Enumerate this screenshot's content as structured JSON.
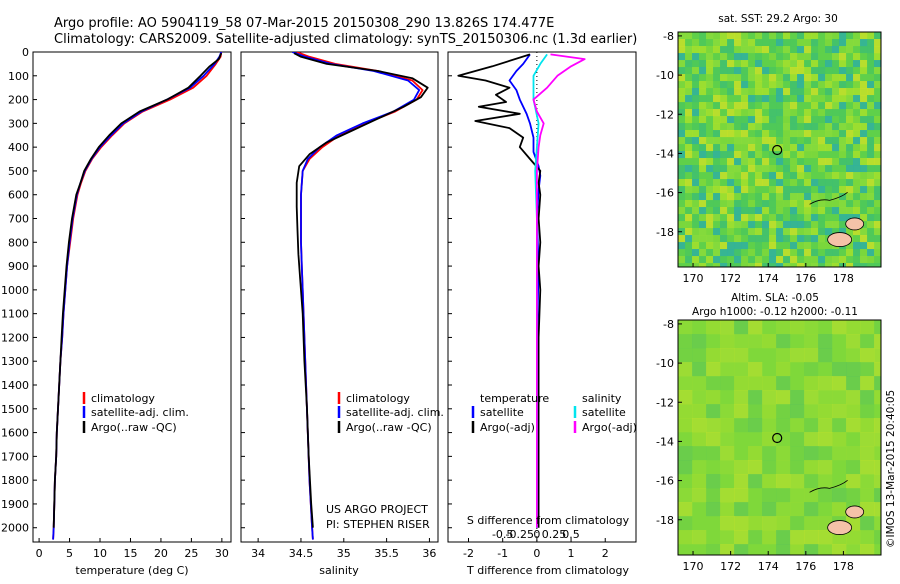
{
  "header": {
    "line1": "Argo profile: AO 5904119_58 07-Mar-2015 20150308_290 13.826S 174.477E",
    "line2": "Climatology: CARS2009. Satellite-adjusted climatology: synTS_20150306.nc (1.3d earlier)"
  },
  "colors": {
    "climatology": "#ff0000",
    "satellite": "#0000ff",
    "argo": "#000000",
    "sal_satellite": "#00e5ee",
    "sal_argo": "#ff00ff"
  },
  "depth_axis": {
    "ylim": [
      2060,
      0
    ],
    "ticks": [
      0,
      100,
      200,
      300,
      400,
      500,
      600,
      700,
      800,
      900,
      1000,
      1100,
      1200,
      1300,
      1400,
      1500,
      1600,
      1700,
      1800,
      1900,
      2000
    ]
  },
  "chart_data": [
    {
      "id": "temperature",
      "type": "line",
      "xlabel": "temperature (deg C)",
      "xlim": [
        -1,
        31.5
      ],
      "xticks": [
        0,
        5,
        10,
        15,
        20,
        25,
        30
      ],
      "legend": {
        "climatology": "climatology",
        "satellite": "satellite-adj. clim.",
        "argo": "Argo(..raw -QC)"
      },
      "series": [
        {
          "name": "climatology",
          "points": [
            [
              29.9,
              0
            ],
            [
              29.8,
              20
            ],
            [
              29.0,
              50
            ],
            [
              27.5,
              100
            ],
            [
              25.3,
              150
            ],
            [
              21.5,
              200
            ],
            [
              17.0,
              250
            ],
            [
              14.0,
              300
            ],
            [
              12.0,
              350
            ],
            [
              10.2,
              400
            ],
            [
              8.7,
              450
            ],
            [
              7.6,
              500
            ],
            [
              6.9,
              550
            ],
            [
              6.3,
              600
            ],
            [
              5.6,
              700
            ],
            [
              5.1,
              800
            ],
            [
              4.6,
              900
            ],
            [
              4.3,
              1000
            ],
            [
              4.0,
              1100
            ],
            [
              3.8,
              1200
            ],
            [
              3.5,
              1300
            ],
            [
              3.3,
              1400
            ],
            [
              3.1,
              1500
            ],
            [
              2.9,
              1600
            ],
            [
              2.8,
              1700
            ],
            [
              2.6,
              1800
            ],
            [
              2.5,
              1900
            ],
            [
              2.4,
              2000
            ],
            [
              2.3,
              2050
            ]
          ]
        },
        {
          "name": "satellite",
          "points": [
            [
              29.9,
              0
            ],
            [
              29.6,
              20
            ],
            [
              28.8,
              50
            ],
            [
              27.0,
              100
            ],
            [
              24.8,
              150
            ],
            [
              21.0,
              200
            ],
            [
              16.8,
              250
            ],
            [
              13.8,
              300
            ],
            [
              11.8,
              350
            ],
            [
              10.0,
              400
            ],
            [
              8.6,
              450
            ],
            [
              7.5,
              500
            ],
            [
              6.8,
              550
            ],
            [
              6.2,
              600
            ],
            [
              5.5,
              700
            ],
            [
              5.0,
              800
            ],
            [
              4.6,
              900
            ],
            [
              4.3,
              1000
            ],
            [
              4.0,
              1100
            ],
            [
              3.8,
              1200
            ],
            [
              3.5,
              1300
            ],
            [
              3.3,
              1400
            ],
            [
              3.1,
              1500
            ],
            [
              2.9,
              1600
            ],
            [
              2.8,
              1700
            ],
            [
              2.6,
              1800
            ],
            [
              2.5,
              1900
            ],
            [
              2.4,
              2000
            ],
            [
              2.3,
              2050
            ]
          ]
        },
        {
          "name": "argo",
          "points": [
            [
              29.9,
              5
            ],
            [
              29.5,
              30
            ],
            [
              28.0,
              60
            ],
            [
              26.5,
              100
            ],
            [
              24.5,
              150
            ],
            [
              21.0,
              200
            ],
            [
              16.5,
              250
            ],
            [
              13.5,
              300
            ],
            [
              11.5,
              350
            ],
            [
              9.8,
              400
            ],
            [
              8.5,
              450
            ],
            [
              7.4,
              500
            ],
            [
              6.8,
              550
            ],
            [
              6.1,
              600
            ],
            [
              5.4,
              700
            ],
            [
              4.9,
              800
            ],
            [
              4.5,
              900
            ],
            [
              4.2,
              1000
            ],
            [
              3.9,
              1100
            ],
            [
              3.7,
              1200
            ],
            [
              3.5,
              1300
            ],
            [
              3.3,
              1400
            ],
            [
              3.1,
              1500
            ],
            [
              2.9,
              1600
            ],
            [
              2.8,
              1700
            ],
            [
              2.6,
              1800
            ],
            [
              2.5,
              1900
            ],
            [
              2.4,
              2000
            ]
          ]
        }
      ]
    },
    {
      "id": "salinity",
      "type": "line",
      "xlabel": "salinity",
      "xlim": [
        33.8,
        36.1
      ],
      "xticks": [
        34,
        34.5,
        35,
        35.5,
        36
      ],
      "legend": {
        "climatology": "climatology",
        "satellite": "satellite-adj. clim.",
        "argo": "Argo(..raw -QC)"
      },
      "series": [
        {
          "name": "climatology",
          "points": [
            [
              34.45,
              0
            ],
            [
              34.6,
              20
            ],
            [
              34.9,
              50
            ],
            [
              35.4,
              80
            ],
            [
              35.8,
              120
            ],
            [
              35.92,
              160
            ],
            [
              35.85,
              200
            ],
            [
              35.6,
              250
            ],
            [
              35.25,
              300
            ],
            [
              34.95,
              350
            ],
            [
              34.75,
              400
            ],
            [
              34.6,
              450
            ],
            [
              34.52,
              500
            ],
            [
              34.5,
              600
            ],
            [
              34.5,
              700
            ],
            [
              34.5,
              800
            ],
            [
              34.51,
              900
            ],
            [
              34.52,
              1000
            ],
            [
              34.54,
              1200
            ],
            [
              34.56,
              1400
            ],
            [
              34.58,
              1600
            ],
            [
              34.6,
              1800
            ],
            [
              34.63,
              2000
            ],
            [
              34.64,
              2050
            ]
          ]
        },
        {
          "name": "satellite",
          "points": [
            [
              34.4,
              0
            ],
            [
              34.55,
              20
            ],
            [
              34.85,
              50
            ],
            [
              35.35,
              80
            ],
            [
              35.75,
              120
            ],
            [
              35.88,
              160
            ],
            [
              35.82,
              200
            ],
            [
              35.58,
              250
            ],
            [
              35.22,
              300
            ],
            [
              34.92,
              350
            ],
            [
              34.72,
              400
            ],
            [
              34.58,
              450
            ],
            [
              34.52,
              500
            ],
            [
              34.5,
              600
            ],
            [
              34.5,
              700
            ],
            [
              34.5,
              800
            ],
            [
              34.51,
              900
            ],
            [
              34.52,
              1000
            ],
            [
              34.54,
              1200
            ],
            [
              34.56,
              1400
            ],
            [
              34.58,
              1600
            ],
            [
              34.6,
              1800
            ],
            [
              34.63,
              2000
            ],
            [
              34.64,
              2050
            ]
          ]
        },
        {
          "name": "argo",
          "points": [
            [
              34.42,
              5
            ],
            [
              34.5,
              20
            ],
            [
              34.8,
              50
            ],
            [
              35.4,
              80
            ],
            [
              35.8,
              110
            ],
            [
              35.98,
              150
            ],
            [
              35.9,
              190
            ],
            [
              35.7,
              230
            ],
            [
              35.4,
              280
            ],
            [
              35.1,
              330
            ],
            [
              34.8,
              380
            ],
            [
              34.6,
              430
            ],
            [
              34.48,
              480
            ],
            [
              34.45,
              550
            ],
            [
              34.45,
              650
            ],
            [
              34.46,
              750
            ],
            [
              34.47,
              850
            ],
            [
              34.49,
              950
            ],
            [
              34.52,
              1100
            ],
            [
              34.54,
              1300
            ],
            [
              34.57,
              1500
            ],
            [
              34.59,
              1700
            ],
            [
              34.62,
              1900
            ],
            [
              34.64,
              2000
            ]
          ]
        }
      ]
    },
    {
      "id": "difference",
      "type": "line",
      "xlabel": "T difference from climatology",
      "xlim": [
        -2.6,
        2.9
      ],
      "xticks": [
        -2,
        -1,
        0,
        1,
        2
      ],
      "top_axis_label": "S difference from climatology",
      "top_ticks": [
        "-0.5",
        "-0.25",
        "0",
        "0.25",
        "0.5"
      ],
      "legend": {
        "temperature": "temperature",
        "salinity": "salinity",
        "t_satellite": "satellite",
        "t_argo": "Argo(-adj)",
        "s_satellite": "satellite",
        "s_argo": "Argo(-adj)"
      },
      "series": [
        {
          "name": "temperature satellite",
          "points": [
            [
              -0.2,
              10
            ],
            [
              -0.4,
              50
            ],
            [
              -0.6,
              80
            ],
            [
              -0.8,
              120
            ],
            [
              -0.6,
              160
            ],
            [
              -0.5,
              200
            ],
            [
              -0.3,
              260
            ],
            [
              -0.2,
              300
            ],
            [
              -0.1,
              360
            ],
            [
              -0.1,
              420
            ],
            [
              0.05,
              480
            ],
            [
              0.1,
              520
            ],
            [
              0.05,
              580
            ],
            [
              0.0,
              700
            ],
            [
              0.05,
              900
            ],
            [
              0.02,
              1100
            ],
            [
              0.0,
              1300
            ],
            [
              0.0,
              1500
            ],
            [
              0.0,
              1700
            ],
            [
              0.0,
              1900
            ],
            [
              0.0,
              2000
            ]
          ]
        },
        {
          "name": "temperature Argo",
          "points": [
            [
              -0.2,
              10
            ],
            [
              -1.3,
              60
            ],
            [
              -2.3,
              100
            ],
            [
              -1.5,
              120
            ],
            [
              -0.8,
              150
            ],
            [
              -1.2,
              180
            ],
            [
              -0.9,
              210
            ],
            [
              -1.7,
              230
            ],
            [
              -0.5,
              260
            ],
            [
              -1.8,
              290
            ],
            [
              -0.8,
              320
            ],
            [
              -0.4,
              360
            ],
            [
              -0.5,
              400
            ],
            [
              -0.2,
              450
            ],
            [
              0.1,
              500
            ],
            [
              0.05,
              550
            ],
            [
              0.1,
              600
            ],
            [
              0.05,
              700
            ],
            [
              0.1,
              800
            ],
            [
              0.05,
              900
            ],
            [
              0.1,
              1000
            ],
            [
              0.05,
              1200
            ],
            [
              0.05,
              1400
            ],
            [
              0.05,
              1600
            ],
            [
              0.05,
              1800
            ],
            [
              0.05,
              2000
            ]
          ]
        },
        {
          "name": "salinity satellite",
          "points": [
            [
              0.3,
              10
            ],
            [
              0.1,
              50
            ],
            [
              -0.1,
              100
            ],
            [
              -0.1,
              200
            ],
            [
              0.05,
              300
            ],
            [
              0.0,
              400
            ],
            [
              -0.05,
              500
            ],
            [
              0.0,
              700
            ],
            [
              0.0,
              900
            ],
            [
              0.0,
              1200
            ],
            [
              0.0,
              1500
            ],
            [
              0.0,
              1800
            ],
            [
              0.0,
              2000
            ]
          ]
        },
        {
          "name": "salinity Argo",
          "points": [
            [
              0.4,
              10
            ],
            [
              1.4,
              30
            ],
            [
              1.0,
              60
            ],
            [
              0.6,
              100
            ],
            [
              0.3,
              150
            ],
            [
              -0.1,
              200
            ],
            [
              0.0,
              250
            ],
            [
              0.2,
              300
            ],
            [
              0.1,
              350
            ],
            [
              0.05,
              400
            ],
            [
              0.0,
              500
            ],
            [
              0.0,
              700
            ],
            [
              0.0,
              900
            ],
            [
              0.0,
              1200
            ],
            [
              0.0,
              1500
            ],
            [
              0.0,
              1800
            ],
            [
              0.0,
              2000
            ]
          ]
        }
      ]
    },
    {
      "id": "sst_map",
      "type": "heatmap",
      "title": "sat. SST: 29.2 Argo: 30",
      "xticks": [
        170,
        172,
        174,
        176,
        178
      ],
      "yticks": [
        -8,
        -10,
        -12,
        -14,
        -16,
        -18
      ],
      "xlim": [
        169.2,
        180
      ],
      "ylim": [
        -19.8,
        -7.8
      ],
      "marker": [
        174.477,
        -13.826
      ]
    },
    {
      "id": "sla_map",
      "type": "heatmap",
      "title_line1": "Altim. SLA: -0.05",
      "title_line2": "Argo h1000: -0.12 h2000: -0.11",
      "xticks": [
        170,
        172,
        174,
        176,
        178
      ],
      "yticks": [
        -8,
        -10,
        -12,
        -14,
        -16,
        -18
      ],
      "xlim": [
        169.2,
        180
      ],
      "ylim": [
        -19.8,
        -7.8
      ],
      "marker": [
        174.477,
        -13.826
      ]
    }
  ],
  "credits": {
    "project": "US ARGO PROJECT",
    "pi": "PI: STEPHEN RISER",
    "imos": "©IMOS 13-Mar-2015 20:40:05"
  }
}
